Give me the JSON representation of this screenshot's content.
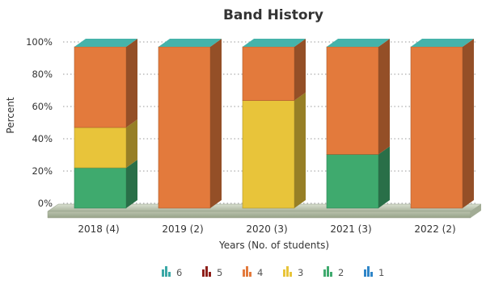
{
  "chart_data": {
    "type": "bar",
    "stacked": true,
    "percent": true,
    "title": "Band History",
    "xlabel": "Years (No. of students)",
    "ylabel": "Percent",
    "ylim": [
      0,
      100
    ],
    "yticks": [
      "0%",
      "20%",
      "40%",
      "60%",
      "80%",
      "100%"
    ],
    "grid": true,
    "legend_position": "bottom",
    "categories": [
      "2018 (4)",
      "2019 (2)",
      "2020 (3)",
      "2021 (3)",
      "2022 (2)"
    ],
    "series": [
      {
        "name": "6",
        "color": "#3aa8a6",
        "values": [
          0,
          0,
          0,
          0,
          0
        ]
      },
      {
        "name": "5",
        "color": "#8e1f1a",
        "values": [
          0,
          0,
          0,
          0,
          0
        ]
      },
      {
        "name": "4",
        "color": "#e37a3c",
        "values": [
          50,
          100,
          33.3,
          66.7,
          100
        ]
      },
      {
        "name": "3",
        "color": "#e8c43a",
        "values": [
          25,
          0,
          66.7,
          0,
          0
        ]
      },
      {
        "name": "2",
        "color": "#3faa6e",
        "values": [
          25,
          0,
          0,
          33.3,
          0
        ]
      },
      {
        "name": "1",
        "color": "#2f86c8",
        "values": [
          0,
          0,
          0,
          0,
          0
        ]
      }
    ]
  }
}
